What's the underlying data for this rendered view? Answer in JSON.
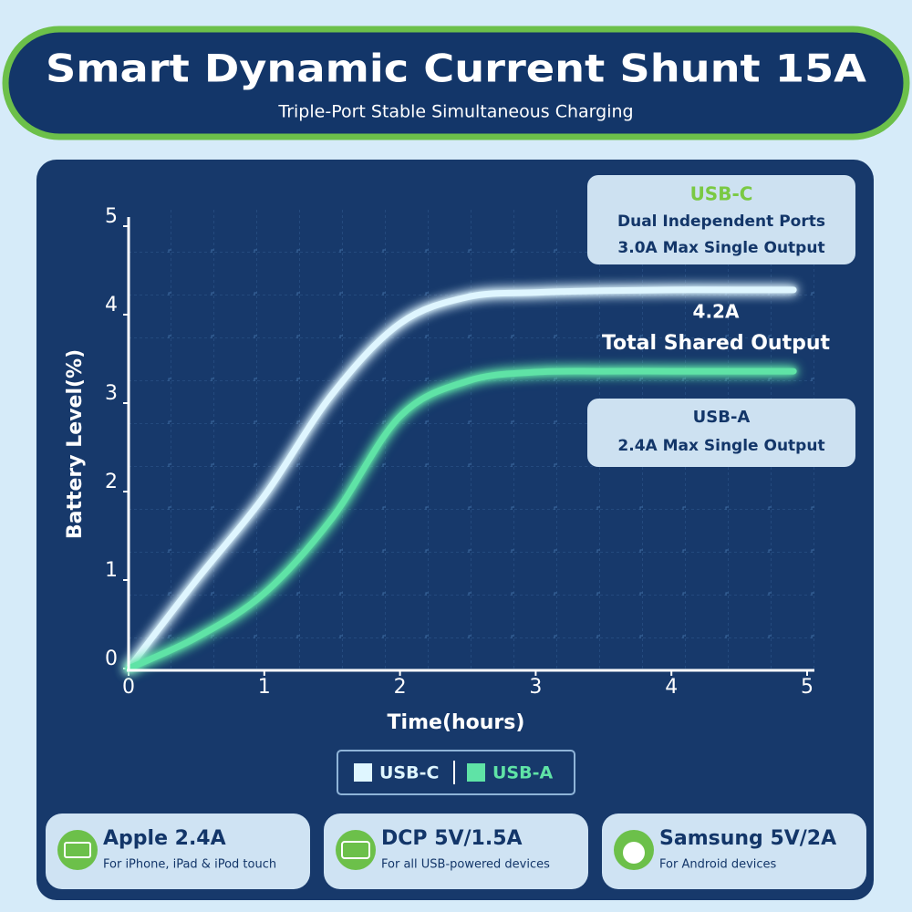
{
  "chart_data": {
    "type": "line",
    "title": "Smart Dynamic Current Shunt 15A",
    "subtitle": "Triple-Port Stable Simultaneous Charging",
    "x_label": "Time(hours)",
    "y_label": "Battery Level(%)",
    "x": [
      0,
      0.5,
      1,
      1.5,
      2,
      2.5,
      3,
      3.5,
      4,
      4.5,
      4.9
    ],
    "series": [
      {
        "name": "USB-C",
        "color": "#dff6ff",
        "values": [
          0,
          1.0,
          1.95,
          3.1,
          3.9,
          4.2,
          4.25,
          4.27,
          4.28,
          4.28,
          4.28
        ]
      },
      {
        "name": "USB-A",
        "color": "#5fe3a6",
        "values": [
          0,
          0.35,
          0.85,
          1.7,
          2.85,
          3.25,
          3.35,
          3.36,
          3.36,
          3.36,
          3.36
        ]
      }
    ],
    "xlim": [
      0,
      5
    ],
    "xticks": [
      0,
      1,
      2,
      3,
      4,
      5
    ],
    "ylim": [
      0,
      5
    ],
    "yticks": [
      0,
      1,
      2,
      3,
      4,
      5
    ],
    "annotations": [
      {
        "title": "USB-C",
        "lines": [
          "Dual Independent Ports",
          "3.0A Max Single Output"
        ]
      },
      {
        "title": "4.2A",
        "lines": [
          "Total Shared Output"
        ]
      },
      {
        "title": "USB-A",
        "lines": [
          "2.4A Max Single Output"
        ]
      }
    ]
  },
  "cards": [
    {
      "title": "Apple 2.4A",
      "subtitle": "For iPhone, iPad & iPod touch"
    },
    {
      "title": "DCP 5V/1.5A",
      "subtitle": "For all USB-powered devices"
    },
    {
      "title": "Samsung 5V/2A",
      "subtitle": "For Android devices"
    }
  ]
}
